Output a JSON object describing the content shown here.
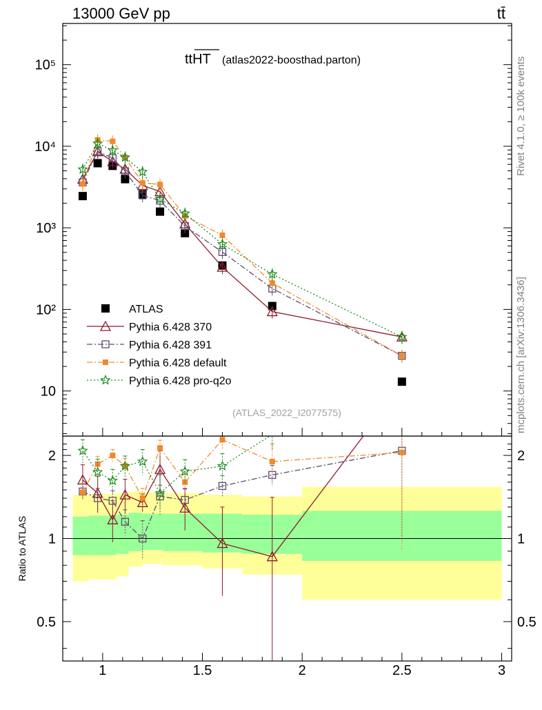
{
  "header": {
    "left": "13000 GeV pp",
    "right": "tt̄"
  },
  "side_labels": {
    "rivet": "Rivet 4.1.0, ≥ 100k events",
    "mcplots": "mcplots.cern.ch [arXiv:1306.3436]"
  },
  "chart_data": {
    "type": "scatter",
    "title": "tt̅H̅T̅ (atlas2022-boosthad.parton)",
    "title_main": "ttHT",
    "title_sub": "(atlas2022-boosthad.parton)",
    "watermark": "(ATLAS_2022_I2077575)",
    "xlim": [
      0.8,
      3.05
    ],
    "xticks": [
      1,
      1.5,
      2,
      2.5,
      3
    ],
    "xtick_labels": [
      "1",
      "1.5",
      "2",
      "2.5",
      "3"
    ],
    "ylim": [
      2.8,
      320000
    ],
    "yscale": "log",
    "yticks": [
      10,
      100,
      1000,
      10000,
      100000
    ],
    "ytick_labels": [
      "10",
      "10²",
      "10³",
      "10⁴",
      "10⁵"
    ],
    "ratio": {
      "ylabel": "Ratio to ATLAS",
      "ylim": [
        0.36,
        2.35
      ],
      "yticks": [
        0.5,
        1,
        2
      ],
      "ytick_labels": [
        "0.5",
        "1",
        "2"
      ],
      "bands": [
        {
          "x0": 0.85,
          "x1": 0.93,
          "green": [
            0.87,
            1.2
          ],
          "yellow": [
            0.7,
            1.44
          ]
        },
        {
          "x0": 0.93,
          "x1": 1.07,
          "green": [
            0.87,
            1.21
          ],
          "yellow": [
            0.71,
            1.45
          ]
        },
        {
          "x0": 1.07,
          "x1": 1.13,
          "green": [
            0.88,
            1.22
          ],
          "yellow": [
            0.73,
            1.46
          ]
        },
        {
          "x0": 1.13,
          "x1": 1.2,
          "green": [
            0.9,
            1.24
          ],
          "yellow": [
            0.79,
            1.48
          ]
        },
        {
          "x0": 1.2,
          "x1": 1.3,
          "green": [
            0.91,
            1.23
          ],
          "yellow": [
            0.81,
            1.47
          ]
        },
        {
          "x0": 1.3,
          "x1": 1.5,
          "green": [
            0.9,
            1.23
          ],
          "yellow": [
            0.8,
            1.46
          ]
        },
        {
          "x0": 1.5,
          "x1": 1.7,
          "green": [
            0.89,
            1.23
          ],
          "yellow": [
            0.78,
            1.44
          ]
        },
        {
          "x0": 1.7,
          "x1": 2.0,
          "green": [
            0.88,
            1.22
          ],
          "yellow": [
            0.74,
            1.42
          ]
        },
        {
          "x0": 2.0,
          "x1": 3.0,
          "green": [
            0.83,
            1.26
          ],
          "yellow": [
            0.6,
            1.54
          ]
        }
      ]
    },
    "series": [
      {
        "name": "ATLAS",
        "color": "#000000",
        "marker": "filled-square",
        "x": [
          0.9,
          0.975,
          1.05,
          1.1125,
          1.2,
          1.2875,
          1.4125,
          1.6,
          1.85,
          2.5
        ],
        "y": [
          2450,
          6200,
          5750,
          3950,
          2580,
          1580,
          860,
          345,
          110,
          13
        ],
        "ratio": [
          1,
          1,
          1,
          1,
          1,
          1,
          1,
          1,
          1,
          1
        ],
        "ratio_err": [
          0,
          0,
          0,
          0,
          0,
          0,
          0,
          0,
          0,
          0
        ]
      },
      {
        "name": "Pythia 6.428 370",
        "color": "#8b1a2b",
        "marker": "open-triangle",
        "dash": "",
        "x": [
          0.9,
          0.975,
          1.05,
          1.1125,
          1.2,
          1.2875,
          1.4125,
          1.6,
          1.85,
          2.5
        ],
        "y": [
          3950,
          8600,
          6500,
          5250,
          3320,
          2780,
          1120,
          330,
          94,
          46
        ],
        "ratio": [
          1.63,
          1.46,
          1.17,
          1.44,
          1.35,
          1.78,
          1.29,
          0.96,
          0.86,
          3.6
        ],
        "ratio_err": [
          0.22,
          0.22,
          0.2,
          0.2,
          0.1,
          0.3,
          0.22,
          0.34,
          0.55,
          0
        ]
      },
      {
        "name": "Pythia 6.428 391",
        "color": "#5c4a6e",
        "marker": "open-square",
        "dash": "8,3,2,3",
        "x": [
          0.9,
          0.975,
          1.05,
          1.1125,
          1.2,
          1.2875,
          1.4125,
          1.6,
          1.85,
          2.5
        ],
        "y": [
          3600,
          8700,
          7150,
          4950,
          2500,
          2150,
          1050,
          505,
          180,
          27
        ],
        "ratio": [
          1.48,
          1.4,
          1.37,
          1.15,
          1.0,
          1.42,
          1.38,
          1.55,
          1.7,
          2.08
        ],
        "ratio_err": [
          0.1,
          0.12,
          0.12,
          0.12,
          0.16,
          0.14,
          0.14,
          0.14,
          0.14,
          1.1
        ]
      },
      {
        "name": "Pythia 6.428 default",
        "color": "#f08a2c",
        "marker": "filled-small-square",
        "dash": "8,3,2,3",
        "x": [
          0.9,
          0.975,
          1.05,
          1.1125,
          1.2,
          1.2875,
          1.4125,
          1.6,
          1.85,
          2.5
        ],
        "y": [
          3450,
          11900,
          11500,
          7250,
          3550,
          3400,
          1400,
          810,
          210,
          27
        ],
        "ratio": [
          1.47,
          1.86,
          2.0,
          1.83,
          1.4,
          2.13,
          1.6,
          2.28,
          1.9,
          2.05
        ],
        "ratio_err": [
          0.1,
          0.12,
          0.1,
          0.12,
          0.12,
          0.14,
          0.14,
          0.18,
          0.3,
          1.15
        ]
      },
      {
        "name": "Pythia 6.428 pro-q2o",
        "color": "#1a8a1a",
        "marker": "open-star",
        "dash": "2,3",
        "x": [
          0.9,
          0.975,
          1.05,
          1.1125,
          1.2,
          1.2875,
          1.4125,
          1.6,
          1.85,
          2.5
        ],
        "y": [
          5200,
          10800,
          8900,
          7300,
          4850,
          2250,
          1500,
          630,
          270,
          46
        ],
        "ratio": [
          2.08,
          1.74,
          1.62,
          1.83,
          1.9,
          1.46,
          1.75,
          1.83,
          2.38,
          3.6
        ],
        "ratio_err": [
          0.2,
          0.2,
          0.16,
          0.16,
          0.2,
          0.24,
          0.18,
          0.2,
          0.3,
          0
        ]
      }
    ],
    "legend": {
      "placement": "lower-left"
    }
  }
}
